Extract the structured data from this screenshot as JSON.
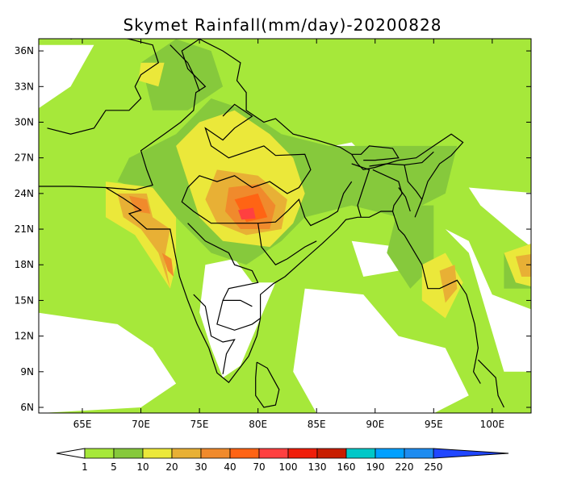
{
  "title": "Skymet Rainfall(mm/day)-20200828",
  "map": {
    "lat_ticks": [
      "36N",
      "33N",
      "30N",
      "27N",
      "24N",
      "21N",
      "18N",
      "15N",
      "12N",
      "9N",
      "6N"
    ],
    "lon_ticks": [
      "65E",
      "70E",
      "75E",
      "80E",
      "85E",
      "90E",
      "95E",
      "100E"
    ]
  },
  "colorbar": {
    "labels": [
      "1",
      "5",
      "10",
      "20",
      "30",
      "40",
      "70",
      "100",
      "130",
      "160",
      "190",
      "220",
      "250"
    ],
    "colors": [
      "#a6e83a",
      "#86c93c",
      "#ebe83a",
      "#e8b035",
      "#f08a2c",
      "#ff6414",
      "#ff4040",
      "#f01e0a",
      "#c81e00",
      "#00c8c8",
      "#00a0ff",
      "#1e8cf0"
    ],
    "below_color": "#ffffff",
    "above_color": "#2046ff"
  }
}
